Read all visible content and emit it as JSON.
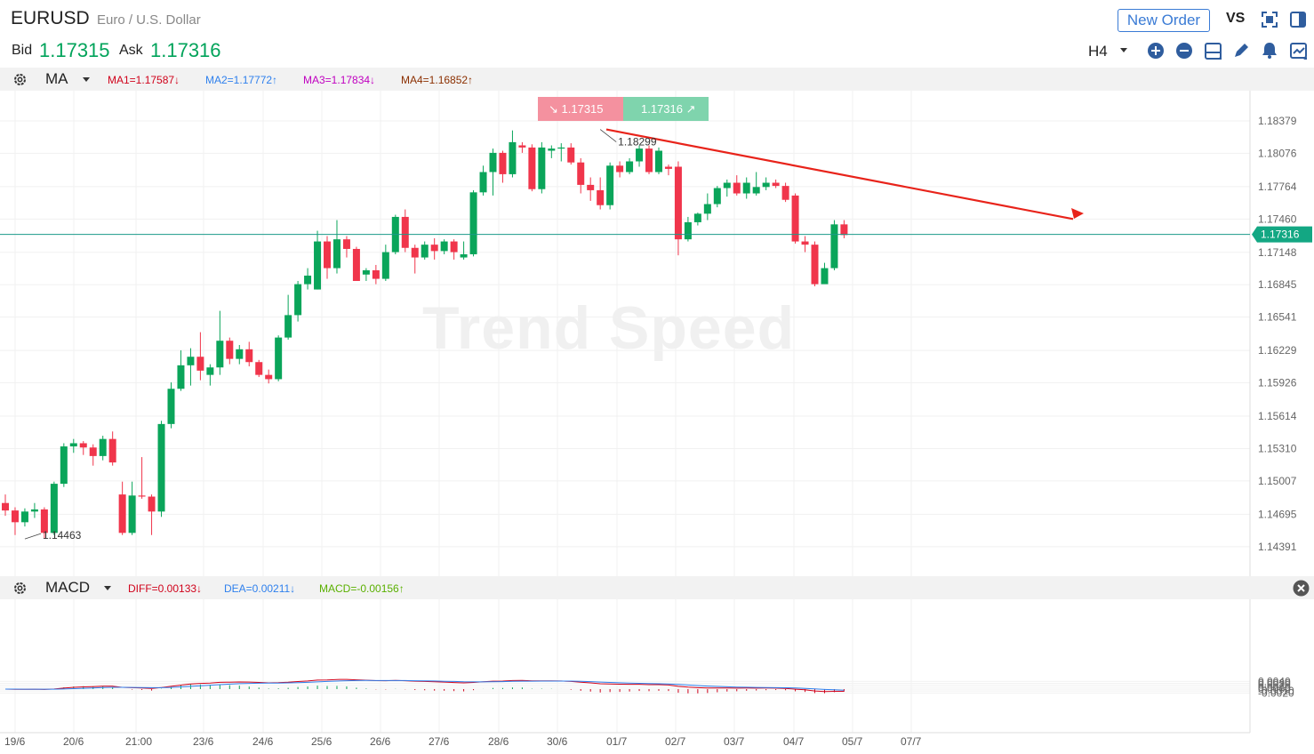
{
  "header": {
    "symbol": "EURUSD",
    "description": "Euro / U.S. Dollar",
    "bid_label": "Bid",
    "bid": "1.17315",
    "ask_label": "Ask",
    "ask": "1.17316",
    "new_order": "New Order",
    "vs": "VS",
    "timeframe": "H4"
  },
  "ma": {
    "name": "MA",
    "ma1": "MA1=1.17587↓",
    "ma2": "MA2=1.17772↑",
    "ma3": "MA3=1.17834↓",
    "ma4": "MA4=1.16852↑",
    "colors": {
      "ma1": "#d0021b",
      "ma2": "#2f80ed",
      "ma3": "#c000c0",
      "ma4": "#8b2f00"
    }
  },
  "macd": {
    "name": "MACD",
    "diff": "DIFF=0.00133↓",
    "dea": "DEA=0.00211↓",
    "macd": "MACD=-0.00156↑",
    "colors": {
      "diff": "#d0021b",
      "dea": "#2f80ed",
      "macd": "#5ab000"
    }
  },
  "price_box": {
    "sell": "1.17315",
    "buy": "1.17316"
  },
  "watermark": "Trend Speed",
  "chart_data": {
    "type": "candlestick",
    "price_axis_ticks": [
      1.18379,
      1.18076,
      1.17764,
      1.1746,
      1.17148,
      1.16845,
      1.16541,
      1.16229,
      1.15926,
      1.15614,
      1.1531,
      1.15007,
      1.14695,
      1.14391
    ],
    "current_price": "1.17316",
    "high_marker": "1.18299",
    "low_marker": "1.14463",
    "x_labels": [
      "19/6",
      "20/6",
      "21:00",
      "23/6",
      "24/6",
      "25/6",
      "26/6",
      "27/6",
      "28/6",
      "30/6",
      "01/7",
      "02/7",
      "03/7",
      "04/7",
      "05/7",
      "07/7"
    ],
    "macd_axis_ticks": [
      "0.0040",
      "0.0030",
      "0.0020",
      "0.0010",
      "0.0000",
      "-0.0010",
      "-0.0020"
    ],
    "candles": [
      [
        1.148,
        1.1473,
        1.1488,
        1.1468
      ],
      [
        1.1473,
        1.1462,
        1.1476,
        1.145
      ],
      [
        1.1462,
        1.1472,
        1.1475,
        1.1458
      ],
      [
        1.1472,
        1.1474,
        1.148,
        1.1466
      ],
      [
        1.1474,
        1.1452,
        1.1476,
        1.1447
      ],
      [
        1.1452,
        1.1498,
        1.15,
        1.145
      ],
      [
        1.1498,
        1.1533,
        1.1536,
        1.1495
      ],
      [
        1.1533,
        1.1536,
        1.154,
        1.1527
      ],
      [
        1.1536,
        1.1532,
        1.1538,
        1.1525
      ],
      [
        1.1532,
        1.1524,
        1.1535,
        1.1515
      ],
      [
        1.1524,
        1.154,
        1.1543,
        1.152
      ],
      [
        1.154,
        1.1518,
        1.1547,
        1.1515
      ],
      [
        1.1488,
        1.1452,
        1.15,
        1.145
      ],
      [
        1.1452,
        1.1487,
        1.15,
        1.145
      ],
      [
        1.1487,
        1.1486,
        1.1523,
        1.1484
      ],
      [
        1.1486,
        1.1472,
        1.1488,
        1.145
      ],
      [
        1.1472,
        1.1554,
        1.1557,
        1.1467
      ],
      [
        1.1554,
        1.1587,
        1.1593,
        1.155
      ],
      [
        1.1587,
        1.1609,
        1.1623,
        1.1585
      ],
      [
        1.1609,
        1.1617,
        1.1625,
        1.159
      ],
      [
        1.1617,
        1.1604,
        1.164,
        1.1595
      ],
      [
        1.16,
        1.1607,
        1.161,
        1.159
      ],
      [
        1.1607,
        1.1632,
        1.166,
        1.16
      ],
      [
        1.1632,
        1.1615,
        1.1635,
        1.161
      ],
      [
        1.1615,
        1.1624,
        1.1628,
        1.161
      ],
      [
        1.1624,
        1.1612,
        1.1631,
        1.1608
      ],
      [
        1.1612,
        1.16,
        1.1614,
        1.1598
      ],
      [
        1.16,
        1.1596,
        1.1605,
        1.1592
      ],
      [
        1.1596,
        1.1635,
        1.1637,
        1.1594
      ],
      [
        1.1635,
        1.1656,
        1.1675,
        1.1633
      ],
      [
        1.1656,
        1.1685,
        1.1688,
        1.165
      ],
      [
        1.1685,
        1.1693,
        1.17,
        1.168
      ],
      [
        1.168,
        1.1725,
        1.1735,
        1.168
      ],
      [
        1.1725,
        1.17,
        1.173,
        1.169
      ],
      [
        1.17,
        1.1727,
        1.1745,
        1.1695
      ],
      [
        1.1727,
        1.1718,
        1.173,
        1.171
      ],
      [
        1.1718,
        1.1688,
        1.172,
        1.169
      ],
      [
        1.1694,
        1.1698,
        1.17,
        1.1688
      ],
      [
        1.1698,
        1.169,
        1.1703,
        1.1685
      ],
      [
        1.169,
        1.1715,
        1.1722,
        1.1688
      ],
      [
        1.1715,
        1.1748,
        1.175,
        1.1713
      ],
      [
        1.1748,
        1.1719,
        1.1755,
        1.1715
      ],
      [
        1.1719,
        1.171,
        1.1722,
        1.1695
      ],
      [
        1.171,
        1.1722,
        1.1725,
        1.1708
      ],
      [
        1.1722,
        1.1716,
        1.1728,
        1.1708
      ],
      [
        1.1716,
        1.1725,
        1.1727,
        1.1713
      ],
      [
        1.1725,
        1.1715,
        1.1727,
        1.1708
      ],
      [
        1.171,
        1.1713,
        1.1725,
        1.1708
      ],
      [
        1.1713,
        1.1771,
        1.1773,
        1.1711
      ],
      [
        1.1771,
        1.179,
        1.1796,
        1.1768
      ],
      [
        1.179,
        1.1808,
        1.1812,
        1.1768
      ],
      [
        1.1808,
        1.1788,
        1.181,
        1.178
      ],
      [
        1.1788,
        1.1818,
        1.1829,
        1.1785
      ],
      [
        1.1815,
        1.1813,
        1.1818,
        1.1808
      ],
      [
        1.1813,
        1.1774,
        1.1816,
        1.1772
      ],
      [
        1.1774,
        1.1813,
        1.1818,
        1.177
      ],
      [
        1.181,
        1.1812,
        1.1815,
        1.1803
      ],
      [
        1.1812,
        1.1813,
        1.1817,
        1.18
      ],
      [
        1.1813,
        1.1799,
        1.1817,
        1.1797
      ],
      [
        1.1799,
        1.1778,
        1.1803,
        1.177
      ],
      [
        1.1778,
        1.1773,
        1.1785,
        1.1763
      ],
      [
        1.1773,
        1.1759,
        1.1785,
        1.1755
      ],
      [
        1.1759,
        1.1796,
        1.1799,
        1.1755
      ],
      [
        1.1796,
        1.179,
        1.18,
        1.1785
      ],
      [
        1.179,
        1.18,
        1.1803,
        1.1788
      ],
      [
        1.18,
        1.1812,
        1.1815,
        1.1795
      ],
      [
        1.1812,
        1.179,
        1.1815,
        1.1788
      ],
      [
        1.179,
        1.181,
        1.1813,
        1.1788
      ],
      [
        1.1795,
        1.1793,
        1.1797,
        1.1787
      ],
      [
        1.1795,
        1.1727,
        1.18,
        1.1712
      ],
      [
        1.1727,
        1.1743,
        1.1748,
        1.1725
      ],
      [
        1.1743,
        1.1751,
        1.1752,
        1.174
      ],
      [
        1.1751,
        1.176,
        1.177,
        1.1745
      ],
      [
        1.176,
        1.1775,
        1.1777,
        1.1757
      ],
      [
        1.1775,
        1.178,
        1.1783,
        1.1767
      ],
      [
        1.178,
        1.177,
        1.1787,
        1.1768
      ],
      [
        1.177,
        1.178,
        1.1785,
        1.1765
      ],
      [
        1.177,
        1.1776,
        1.179,
        1.1768
      ],
      [
        1.1776,
        1.178,
        1.1785,
        1.1773
      ],
      [
        1.178,
        1.1777,
        1.1783,
        1.1775
      ],
      [
        1.1777,
        1.1764,
        1.178,
        1.1762
      ],
      [
        1.1768,
        1.1725,
        1.177,
        1.1723
      ],
      [
        1.1725,
        1.1722,
        1.173,
        1.1715
      ],
      [
        1.1722,
        1.1685,
        1.1725,
        1.1683
      ],
      [
        1.1685,
        1.17,
        1.1705,
        1.1687
      ],
      [
        1.17,
        1.1741,
        1.1745,
        1.1698
      ],
      [
        1.1741,
        1.1731,
        1.1745,
        1.1728
      ]
    ]
  }
}
